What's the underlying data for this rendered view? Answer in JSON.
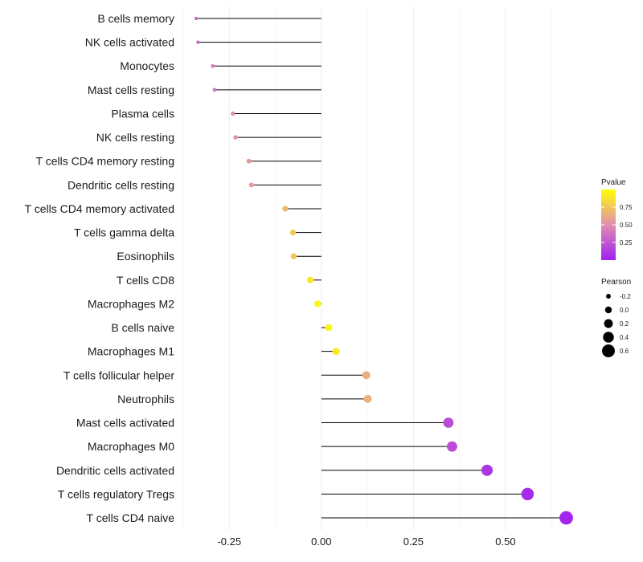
{
  "chart_data": {
    "type": "lollipop",
    "categories": [
      "B cells memory",
      "NK cells activated",
      "Monocytes",
      "Mast cells resting",
      "Plasma cells",
      "NK cells resting",
      "T cells CD4 memory resting",
      "Dendritic cells resting",
      "T cells CD4 memory activated",
      "T cells gamma delta",
      "Eosinophils",
      "T cells CD8",
      "Macrophages M2",
      "B cells naive",
      "Macrophages M1",
      "T cells follicular helper",
      "Neutrophils",
      "Mast cells activated",
      "Macrophages M0",
      "Dendritic cells activated",
      "T cells regulatory  Tregs",
      "T cells CD4 naive"
    ],
    "values": [
      -0.34,
      -0.335,
      -0.295,
      -0.29,
      -0.24,
      -0.233,
      -0.197,
      -0.19,
      -0.098,
      -0.077,
      -0.075,
      -0.03,
      -0.01,
      0.02,
      0.04,
      0.122,
      0.126,
      0.345,
      0.355,
      0.45,
      0.56,
      0.665
    ],
    "pvalues": [
      0.3,
      0.3,
      0.4,
      0.4,
      0.5,
      0.5,
      0.55,
      0.55,
      0.7,
      0.75,
      0.75,
      0.9,
      0.95,
      0.95,
      0.9,
      0.65,
      0.65,
      0.2,
      0.2,
      0.1,
      0.05,
      0.02
    ],
    "xlim": [
      -0.375,
      0.725
    ],
    "xticks": [
      -0.25,
      0.0,
      0.25,
      0.5
    ],
    "xtick_labels": [
      "-0.25",
      "0.00",
      "0.25",
      "0.50"
    ],
    "grid": true,
    "color_legend": {
      "title": "Pvalue",
      "ticks": [
        0.75,
        0.5,
        0.25
      ],
      "tick_labels": [
        "0.75",
        "0.50",
        "0.25"
      ],
      "range": [
        0,
        1
      ],
      "low_color": "#a020f0",
      "high_color": "#ffff00",
      "placement": "right"
    },
    "size_legend": {
      "title": "Pearson",
      "values": [
        -0.2,
        0.0,
        0.2,
        0.4,
        0.6
      ],
      "labels": [
        "-0.2",
        "0.0",
        "0.2",
        "0.4",
        "0.6"
      ],
      "placement": "right"
    }
  }
}
